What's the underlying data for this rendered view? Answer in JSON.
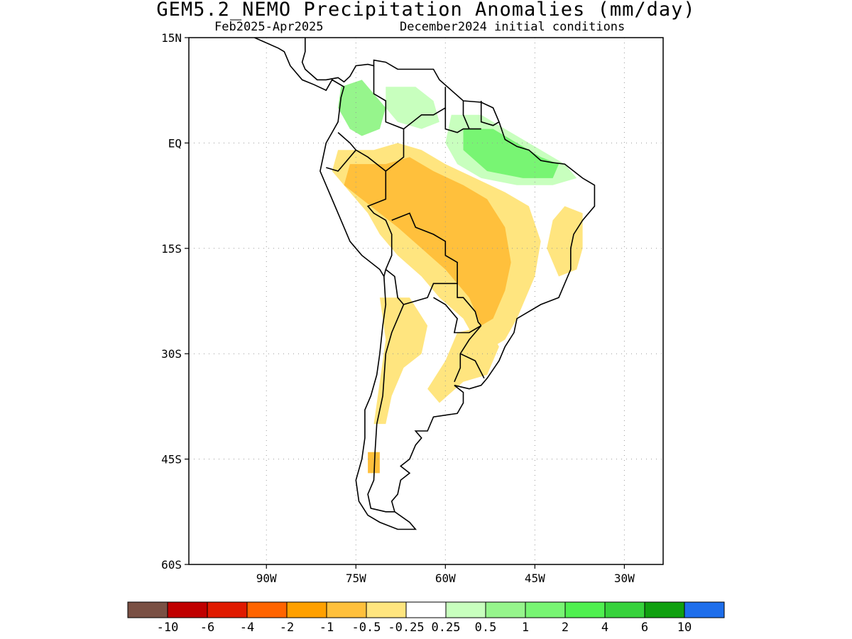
{
  "title": "GEM5.2_NEMO Precipitation Anomalies (mm/day)",
  "subtitle_period": "Feb2025-Apr2025",
  "subtitle_init": "December2024 initial conditions",
  "map": {
    "region": "South America",
    "lon_range": [
      -103,
      -23.5
    ],
    "lat_range": [
      -60,
      15
    ],
    "lat_ticks": [
      {
        "lat": 15,
        "label": "15N"
      },
      {
        "lat": 0,
        "label": "EQ"
      },
      {
        "lat": -15,
        "label": "15S"
      },
      {
        "lat": -30,
        "label": "30S"
      },
      {
        "lat": -45,
        "label": "45S"
      },
      {
        "lat": -60,
        "label": "60S"
      }
    ],
    "lon_ticks": [
      {
        "lon": -90,
        "label": "90W"
      },
      {
        "lon": -75,
        "label": "75W"
      },
      {
        "lon": -60,
        "label": "60W"
      },
      {
        "lon": -45,
        "label": "45W"
      },
      {
        "lon": -30,
        "label": "30W"
      }
    ],
    "gridlines": true
  },
  "colorbar": {
    "colors": [
      "#7a5044",
      "#c00000",
      "#e01a00",
      "#ff6400",
      "#ffa000",
      "#ffc03c",
      "#ffe57f",
      "#ffffff",
      "#c8ffbe",
      "#96f58c",
      "#78f573",
      "#50f050",
      "#37d23c",
      "#10a010",
      "#1e6eeb"
    ],
    "labels": [
      "-10",
      "-6",
      "-4",
      "-2",
      "-1",
      "-0.5",
      "-0.25",
      "0.25",
      "0.5",
      "1",
      "2",
      "4",
      "6",
      "10"
    ]
  },
  "anomaly_regions": [
    {
      "name": "colombia-wet",
      "color": "#96f58c",
      "points": [
        [
          -77.5,
          8
        ],
        [
          -74,
          9
        ],
        [
          -72,
          7
        ],
        [
          -70,
          5
        ],
        [
          -71,
          2
        ],
        [
          -74,
          1
        ],
        [
          -76,
          2
        ],
        [
          -78,
          5
        ]
      ]
    },
    {
      "name": "venezuela-light-wet",
      "color": "#c8ffbe",
      "points": [
        [
          -70,
          8
        ],
        [
          -65,
          8
        ],
        [
          -62,
          6
        ],
        [
          -61,
          3
        ],
        [
          -64,
          2
        ],
        [
          -68,
          3
        ],
        [
          -70,
          5
        ]
      ]
    },
    {
      "name": "amazon-north-wet",
      "color": "#c8ffbe",
      "points": [
        [
          -59,
          4
        ],
        [
          -54,
          4
        ],
        [
          -50,
          2
        ],
        [
          -44,
          -1
        ],
        [
          -40,
          -3
        ],
        [
          -38,
          -5
        ],
        [
          -42,
          -6
        ],
        [
          -48,
          -6
        ],
        [
          -54,
          -5
        ],
        [
          -58,
          -3
        ],
        [
          -60,
          0
        ]
      ]
    },
    {
      "name": "amazon-north-wet-core",
      "color": "#78f573",
      "points": [
        [
          -57,
          2
        ],
        [
          -52,
          2
        ],
        [
          -48,
          0
        ],
        [
          -44,
          -2
        ],
        [
          -41,
          -3
        ],
        [
          -42,
          -5
        ],
        [
          -47,
          -5
        ],
        [
          -53,
          -4
        ],
        [
          -57,
          -1
        ]
      ]
    },
    {
      "name": "peru-bolivia-dry",
      "color": "#ffe57f",
      "points": [
        [
          -78,
          -1
        ],
        [
          -72,
          -1
        ],
        [
          -68,
          0
        ],
        [
          -64,
          -1
        ],
        [
          -60,
          -3
        ],
        [
          -55,
          -5
        ],
        [
          -50,
          -7
        ],
        [
          -46,
          -9
        ],
        [
          -44,
          -14
        ],
        [
          -45,
          -19
        ],
        [
          -47,
          -23
        ],
        [
          -48,
          -25
        ],
        [
          -50,
          -28
        ],
        [
          -52,
          -29
        ],
        [
          -55,
          -28
        ],
        [
          -57,
          -25
        ],
        [
          -61,
          -22
        ],
        [
          -64,
          -19
        ],
        [
          -68,
          -16
        ],
        [
          -71,
          -13
        ],
        [
          -73,
          -10
        ],
        [
          -76,
          -7
        ],
        [
          -79,
          -4
        ]
      ]
    },
    {
      "name": "central-dry-core",
      "color": "#ffc03c",
      "points": [
        [
          -76,
          -3
        ],
        [
          -70,
          -3
        ],
        [
          -66,
          -2
        ],
        [
          -62,
          -4
        ],
        [
          -57,
          -6
        ],
        [
          -53,
          -8
        ],
        [
          -50,
          -12
        ],
        [
          -49,
          -17
        ],
        [
          -50,
          -21
        ],
        [
          -52,
          -25
        ],
        [
          -54,
          -26
        ],
        [
          -56,
          -22
        ],
        [
          -60,
          -18
        ],
        [
          -64,
          -15
        ],
        [
          -68,
          -12
        ],
        [
          -71,
          -10
        ],
        [
          -74,
          -8
        ],
        [
          -77,
          -6
        ]
      ]
    },
    {
      "name": "northeast-brazil-dry",
      "color": "#ffe57f",
      "points": [
        [
          -40,
          -9
        ],
        [
          -37,
          -10
        ],
        [
          -37,
          -15
        ],
        [
          -38,
          -18
        ],
        [
          -41,
          -19
        ],
        [
          -43,
          -15
        ],
        [
          -42,
          -11
        ]
      ]
    },
    {
      "name": "argentina-west-dry",
      "color": "#ffe57f",
      "points": [
        [
          -71,
          -22
        ],
        [
          -66,
          -22
        ],
        [
          -63,
          -26
        ],
        [
          -64,
          -30
        ],
        [
          -67,
          -32
        ],
        [
          -69,
          -36
        ],
        [
          -70,
          -40
        ],
        [
          -72,
          -40
        ],
        [
          -71,
          -34
        ],
        [
          -70,
          -28
        ]
      ]
    },
    {
      "name": "uruguay-dry",
      "color": "#ffe57f",
      "points": [
        [
          -58,
          -27
        ],
        [
          -53,
          -26
        ],
        [
          -51,
          -29
        ],
        [
          -53,
          -33
        ],
        [
          -57,
          -34
        ],
        [
          -61,
          -37
        ],
        [
          -63,
          -35
        ],
        [
          -60,
          -31
        ]
      ]
    },
    {
      "name": "patagonia-dry",
      "color": "#ffc03c",
      "points": [
        [
          -73,
          -44
        ],
        [
          -71,
          -44
        ],
        [
          -71,
          -47
        ],
        [
          -73,
          -47
        ]
      ]
    }
  ],
  "coastline": [
    [
      -92,
      15
    ],
    [
      -88,
      13.5
    ],
    [
      -87,
      13
    ],
    [
      -86,
      11
    ],
    [
      -84,
      9
    ],
    [
      -82,
      8.3
    ],
    [
      -80,
      7.5
    ],
    [
      -79,
      9
    ],
    [
      -77,
      8
    ],
    [
      -77.5,
      6.5
    ],
    [
      -78,
      3
    ],
    [
      -79,
      1.5
    ],
    [
      -80,
      0
    ],
    [
      -80.5,
      -2
    ],
    [
      -81,
      -4
    ],
    [
      -80,
      -6
    ],
    [
      -79,
      -8
    ],
    [
      -77,
      -12
    ],
    [
      -76,
      -14
    ],
    [
      -74,
      -16
    ],
    [
      -71,
      -18
    ],
    [
      -70.3,
      -19
    ],
    [
      -70,
      -23
    ],
    [
      -70.5,
      -26
    ],
    [
      -71,
      -30
    ],
    [
      -71.5,
      -33
    ],
    [
      -72.5,
      -36
    ],
    [
      -73.5,
      -38
    ],
    [
      -73.5,
      -42
    ],
    [
      -74,
      -45
    ],
    [
      -75,
      -48
    ],
    [
      -74.5,
      -51
    ],
    [
      -73,
      -53
    ],
    [
      -71,
      -54
    ],
    [
      -68,
      -55
    ],
    [
      -65,
      -55
    ],
    [
      -66,
      -54
    ],
    [
      -68.5,
      -52.5
    ],
    [
      -69,
      -51
    ],
    [
      -68,
      -50
    ],
    [
      -67.5,
      -48
    ],
    [
      -66,
      -47
    ],
    [
      -67.5,
      -46
    ],
    [
      -66,
      -45
    ],
    [
      -65,
      -43
    ],
    [
      -64,
      -42
    ],
    [
      -65,
      -41
    ],
    [
      -63,
      -41
    ],
    [
      -62,
      -39
    ],
    [
      -58,
      -38.5
    ],
    [
      -57,
      -37
    ],
    [
      -57,
      -35.5
    ],
    [
      -58.5,
      -34.5
    ],
    [
      -56,
      -35
    ],
    [
      -54,
      -34.5
    ],
    [
      -53,
      -33.5
    ],
    [
      -51,
      -31
    ],
    [
      -50,
      -29
    ],
    [
      -48.5,
      -27
    ],
    [
      -48,
      -25
    ],
    [
      -46,
      -24
    ],
    [
      -44,
      -23
    ],
    [
      -41,
      -22
    ],
    [
      -40,
      -20
    ],
    [
      -39,
      -18
    ],
    [
      -39,
      -15
    ],
    [
      -38.5,
      -13
    ],
    [
      -37,
      -11
    ],
    [
      -35,
      -9
    ],
    [
      -35,
      -6
    ],
    [
      -37,
      -5
    ],
    [
      -40,
      -3
    ],
    [
      -42,
      -2.8
    ],
    [
      -44,
      -2.5
    ],
    [
      -46,
      -1
    ],
    [
      -48,
      -0.5
    ],
    [
      -50,
      0.5
    ],
    [
      -51,
      3
    ],
    [
      -52,
      5
    ],
    [
      -54,
      5.8
    ],
    [
      -57,
      6
    ],
    [
      -59,
      7.5
    ],
    [
      -61,
      9
    ],
    [
      -62,
      10.5
    ],
    [
      -64,
      10.5
    ],
    [
      -66,
      10.5
    ],
    [
      -68,
      10.5
    ],
    [
      -70,
      11.5
    ],
    [
      -72,
      11.8
    ],
    [
      -72,
      11
    ],
    [
      -73,
      11.2
    ],
    [
      -75,
      11
    ],
    [
      -76,
      9.5
    ],
    [
      -77,
      8.7
    ],
    [
      -78,
      9.3
    ],
    [
      -80,
      9
    ],
    [
      -81.5,
      9
    ],
    [
      -83.5,
      10.5
    ],
    [
      -84,
      11.5
    ],
    [
      -83.5,
      13
    ],
    [
      -83.5,
      15
    ]
  ],
  "borders": [
    [
      [
        -78,
        1.5
      ],
      [
        -76,
        0
      ],
      [
        -75,
        -1
      ],
      [
        -73,
        -2
      ],
      [
        -70,
        -4
      ]
    ],
    [
      [
        -80,
        -3.5
      ],
      [
        -78,
        -4
      ],
      [
        -77,
        -3
      ],
      [
        -75,
        -1
      ]
    ],
    [
      [
        -70,
        -4
      ],
      [
        -70,
        -8
      ],
      [
        -73,
        -9
      ],
      [
        -72,
        -10
      ],
      [
        -70,
        -11
      ],
      [
        -69,
        -13
      ],
      [
        -69,
        -16
      ],
      [
        -70,
        -18
      ],
      [
        -70.3,
        -19
      ]
    ],
    [
      [
        -70,
        -18
      ],
      [
        -68.5,
        -19
      ],
      [
        -68,
        -22
      ],
      [
        -67,
        -23
      ]
    ],
    [
      [
        -69,
        -11
      ],
      [
        -66,
        -10
      ],
      [
        -65,
        -12
      ],
      [
        -62,
        -13
      ],
      [
        -60,
        -14
      ],
      [
        -60,
        -16
      ],
      [
        -58,
        -17
      ],
      [
        -58,
        -20
      ],
      [
        -62,
        -20
      ],
      [
        -63,
        -22
      ],
      [
        -67,
        -23
      ]
    ],
    [
      [
        -67,
        -23
      ],
      [
        -69,
        -27
      ],
      [
        -70,
        -30
      ],
      [
        -70.5,
        -36
      ],
      [
        -71.5,
        -40
      ],
      [
        -71.8,
        -44
      ],
      [
        -72,
        -48
      ],
      [
        -73,
        -50
      ],
      [
        -72.5,
        -52
      ],
      [
        -70,
        -52.5
      ],
      [
        -68.5,
        -52.5
      ]
    ],
    [
      [
        -58,
        -20
      ],
      [
        -58,
        -22
      ],
      [
        -57,
        -22
      ],
      [
        -55,
        -24
      ],
      [
        -54.5,
        -25.5
      ],
      [
        -54,
        -26
      ]
    ],
    [
      [
        -62,
        -22
      ],
      [
        -60,
        -23
      ],
      [
        -58,
        -25
      ],
      [
        -58.5,
        -27
      ],
      [
        -56,
        -27
      ],
      [
        -54,
        -26
      ]
    ],
    [
      [
        -54,
        -26
      ],
      [
        -56,
        -28
      ],
      [
        -57.5,
        -30
      ],
      [
        -57.5,
        -32
      ],
      [
        -58.5,
        -34
      ]
    ],
    [
      [
        -53.5,
        -33.5
      ],
      [
        -55,
        -31
      ],
      [
        -57.5,
        -30
      ]
    ],
    [
      [
        -70,
        -4
      ],
      [
        -67,
        -2
      ],
      [
        -67,
        1
      ],
      [
        -67,
        2
      ],
      [
        -70,
        3
      ],
      [
        -70,
        6
      ],
      [
        -72,
        7
      ],
      [
        -72,
        11
      ]
    ],
    [
      [
        -67,
        2
      ],
      [
        -64,
        4
      ],
      [
        -62,
        4
      ],
      [
        -60,
        5
      ],
      [
        -60,
        8
      ]
    ],
    [
      [
        -60,
        5
      ],
      [
        -60,
        2
      ],
      [
        -58,
        1.5
      ],
      [
        -57,
        2
      ],
      [
        -54,
        2
      ]
    ],
    [
      [
        -57,
        6
      ],
      [
        -57,
        4
      ],
      [
        -56,
        2
      ]
    ],
    [
      [
        -54,
        6
      ],
      [
        -54,
        3
      ],
      [
        -52,
        2.5
      ],
      [
        -51,
        3
      ]
    ]
  ]
}
